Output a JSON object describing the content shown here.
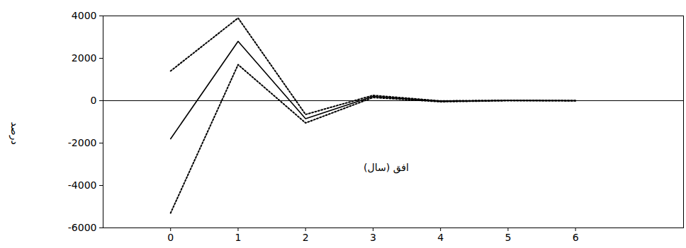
{
  "chart_data": {
    "type": "line",
    "x_label": "افق (سال)",
    "y_label": "درصد",
    "x": [
      0,
      1,
      2,
      3,
      4,
      5,
      6
    ],
    "series": [
      {
        "color": "#000000",
        "line_style": "solid",
        "values": [
          -1800,
          2800,
          -850,
          200,
          -30,
          10,
          0
        ]
      },
      {
        "color": "#000000",
        "line_style": "dotted",
        "values": [
          1400,
          3900,
          -650,
          250,
          -10,
          20,
          5
        ]
      },
      {
        "color": "#000000",
        "line_style": "dotted",
        "values": [
          -5300,
          1700,
          -1050,
          150,
          -50,
          0,
          -5
        ]
      }
    ],
    "xlim": [
      -1,
      7.6
    ],
    "xticks": [
      0,
      1,
      2,
      3,
      4,
      5,
      6
    ],
    "ylim": [
      -6000,
      4000
    ],
    "yticks": [
      -6000,
      -4000,
      -2000,
      0,
      2000,
      4000
    ],
    "grid": false
  }
}
